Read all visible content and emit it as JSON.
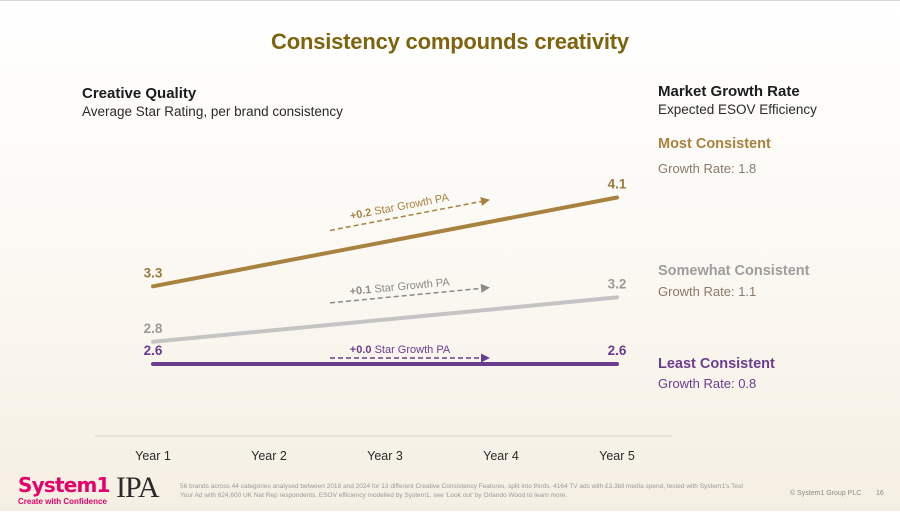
{
  "title": "Consistency compounds creativity",
  "left_header": {
    "title": "Creative Quality",
    "subtitle": "Average Star Rating, per brand consistency"
  },
  "right_header": {
    "title": "Market Growth Rate",
    "subtitle": "Expected ESOV Efficiency"
  },
  "segments": [
    {
      "name": "Most Consistent",
      "rate": "Growth Rate: 1.8",
      "color": "#a8823f"
    },
    {
      "name": "Somewhat Consistent",
      "rate": "Growth Rate: 1.1",
      "color": "#9d9d9d"
    },
    {
      "name": "Least Consistent",
      "rate": "Growth Rate: 0.8",
      "color": "#6b3d8f"
    }
  ],
  "chart_data": {
    "type": "line",
    "categories": [
      "Year 1",
      "Year 2",
      "Year 3",
      "Year 4",
      "Year 5"
    ],
    "series": [
      {
        "name": "Most Consistent",
        "start": 3.3,
        "end": 4.1,
        "start_label": "3.3",
        "end_label": "4.1",
        "growth_bold": "+0.2",
        "growth_text": "Star Growth PA",
        "color": "#a8823f",
        "label_color": "#9a7a3c",
        "arrow_color": "#a8823f"
      },
      {
        "name": "Somewhat Consistent",
        "start": 2.8,
        "end": 3.2,
        "start_label": "2.8",
        "end_label": "3.2",
        "growth_bold": "+0.1",
        "growth_text": "Star Growth PA",
        "color": "#c4c4c4",
        "label_color": "#9a9a9a",
        "arrow_color": "#8a8a8a"
      },
      {
        "name": "Least Consistent",
        "start": 2.6,
        "end": 2.6,
        "start_label": "2.6",
        "end_label": "2.6",
        "growth_bold": "+0.0",
        "growth_text": "Star Growth PA",
        "color": "#6b3d8f",
        "label_color": "#6b3d8f",
        "arrow_color": "#6b3d8f"
      }
    ]
  },
  "footer": {
    "logo": "System1",
    "tagline": "Create with Confidence",
    "ipa": "IPA",
    "note": "56 brands across 44 categories analysed between 2018 and 2024 for 13 different Creative Consistency Features, split into thirds. 4164 TV ads with £3.3bil media spend, tested with System1's Test Your Ad with 624,600 UK Nat Rep respondents. ESOV efficiency modelled by System1, see 'Look out' by Orlando Wood to learn more.",
    "copyright": "© System1 Group PLC",
    "page": "16"
  }
}
